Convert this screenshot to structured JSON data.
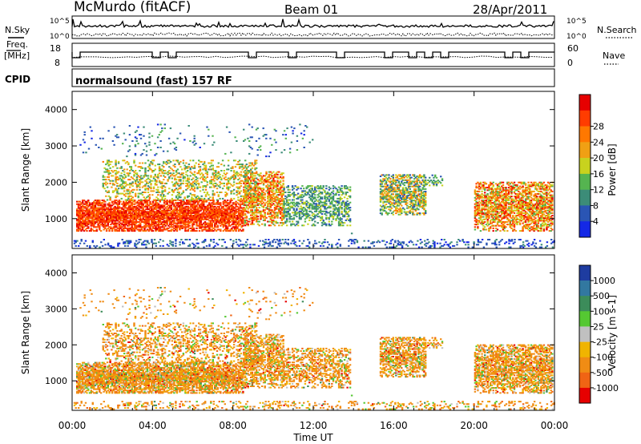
{
  "header": {
    "station": "McMurdo (fitACF)",
    "beam": "Beam 01",
    "date": "28/Apr/2011"
  },
  "top_panels": {
    "nsky_label": "N.Sky",
    "nsearch_label": "N.Search",
    "count_ticks": [
      "10^5",
      "10^0"
    ],
    "freq_label_line1": "Freq.",
    "freq_label_line2": "[MHz]",
    "freq_ticks": [
      "18",
      "8"
    ],
    "nave_label": "Nave",
    "nave_ticks": [
      "60",
      "0"
    ],
    "cpid_label": "CPID",
    "cpid_text": "normalsound (fast) 157 RF"
  },
  "chart_data": [
    {
      "type": "heatmap",
      "panel": "power",
      "ylabel": "Slant Range [km]",
      "y_ticks": [
        "1000",
        "2000",
        "3000",
        "4000"
      ],
      "ylim": [
        180,
        4500
      ],
      "xlim": [
        "00:00",
        "24:00"
      ],
      "colorbar": {
        "label": "Power [dB]",
        "ticks": [
          "4",
          "8",
          "12",
          "16",
          "20",
          "24",
          "28"
        ],
        "colors": [
          "#1428e6",
          "#2a55b4",
          "#3c8c78",
          "#55b450",
          "#c8d21e",
          "#f0a014",
          "#ff7800",
          "#ff3c00",
          "#e60000"
        ]
      }
    },
    {
      "type": "heatmap",
      "panel": "velocity",
      "ylabel": "Slant Range [km]",
      "y_ticks": [
        "1000",
        "2000",
        "3000",
        "4000"
      ],
      "ylim": [
        180,
        4500
      ],
      "xlim": [
        "00:00",
        "24:00"
      ],
      "colorbar": {
        "label": "Velocity [m s-1]",
        "ticks": [
          "1000",
          "500",
          "100",
          "25",
          "-25",
          "-100",
          "-500",
          "-1000"
        ],
        "colors": [
          "#1e3ca0",
          "#3278a0",
          "#3c8c5a",
          "#55c832",
          "#c0c0c0",
          "#f0b400",
          "#f08c14",
          "#f06414",
          "#e60000"
        ]
      }
    }
  ],
  "x_axis": {
    "ticks": [
      "00:00",
      "04:00",
      "08:00",
      "12:00",
      "16:00",
      "20:00",
      "00:00"
    ],
    "label": "Time UT"
  }
}
